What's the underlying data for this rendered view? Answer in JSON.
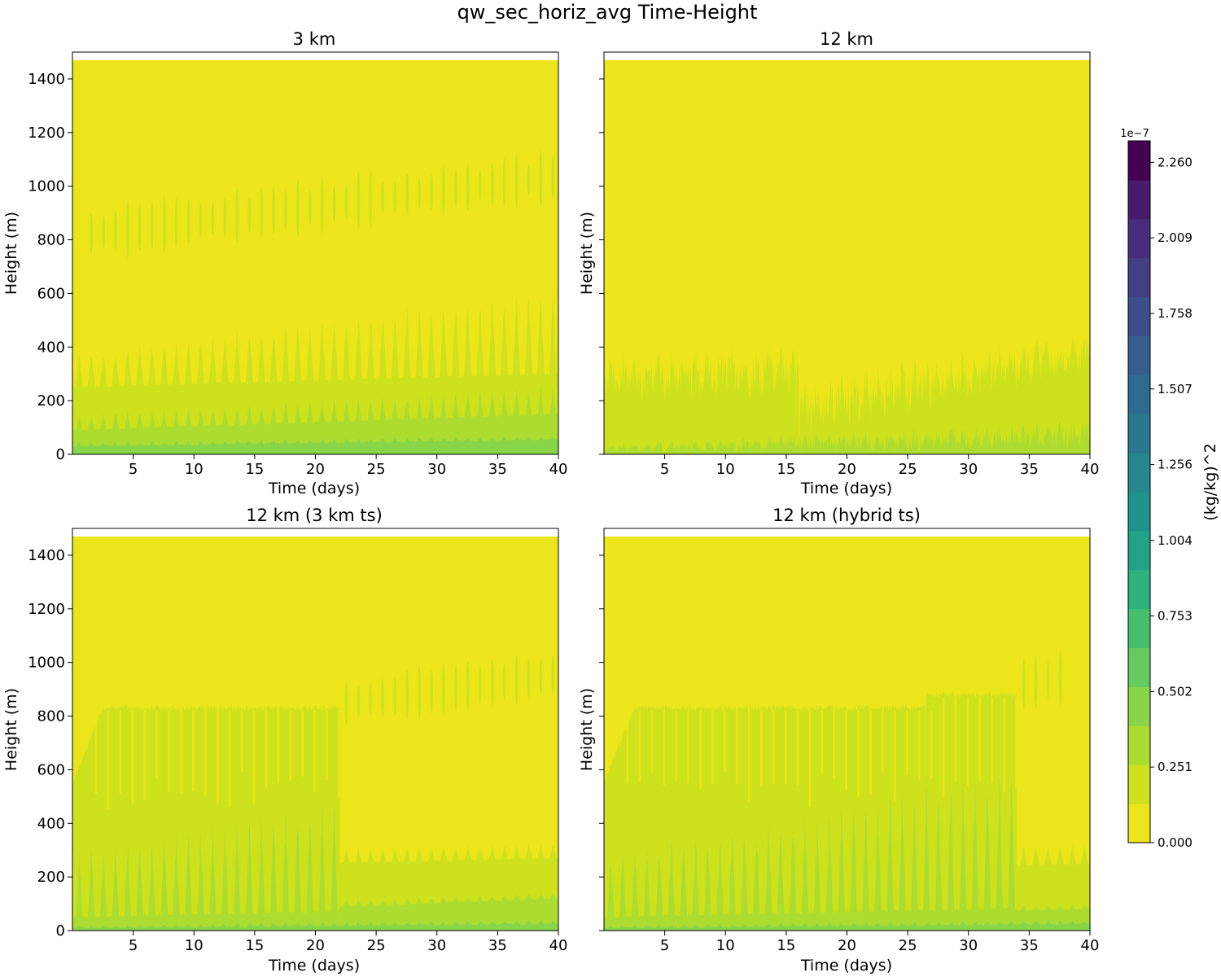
{
  "chart_data": {
    "type": "heatmap",
    "title": "qw_sec_horiz_avg Time-Height",
    "colors": {
      "levels": [
        "#ece51b",
        "#cde11d",
        "#addc30",
        "#89d548",
        "#65cb5e",
        "#46c06f",
        "#2db27d",
        "#20a386",
        "#1f948c",
        "#24868e",
        "#29788e",
        "#2e6b8e",
        "#355e8d",
        "#3c4f8a",
        "#423f85",
        "#472d7b",
        "#481b6d",
        "#440154"
      ],
      "axes_edge": "#000000",
      "background": "#ffffff"
    },
    "colorbar": {
      "label": "(kg/kg)^2",
      "exponent": "1e−7",
      "min": 0,
      "max": 2.26,
      "n_levels": 18,
      "ticks": [
        0.0,
        0.251,
        0.502,
        0.753,
        1.004,
        1.256,
        1.507,
        1.758,
        2.009,
        2.26
      ],
      "tick_labels": [
        "0.000",
        "0.251",
        "0.502",
        "0.753",
        "1.004",
        "1.256",
        "1.507",
        "1.758",
        "2.009",
        "2.260"
      ]
    },
    "panels": [
      {
        "title": "3 km",
        "xlabel": "Time (days)",
        "ylabel": "Height (m)",
        "xlim": [
          0,
          40
        ],
        "ylim": [
          0,
          1500
        ],
        "xticks": [
          5,
          10,
          15,
          20,
          25,
          30,
          35,
          40
        ],
        "yticks": [
          0,
          200,
          400,
          600,
          800,
          1000,
          1200,
          1400
        ],
        "ytick_labels_visible": true,
        "data_top": 1470,
        "regime": "spikes",
        "layers": [
          {
            "level": 1,
            "base_top": [
              250,
              300
            ],
            "spike_top": [
              380,
              650
            ],
            "spike_width": 0.3
          },
          {
            "level": 2,
            "base_top": [
              90,
              150
            ],
            "spike_top": [
              150,
              260
            ],
            "spike_width": 0.25
          },
          {
            "level": 3,
            "base_top": [
              30,
              55
            ],
            "spike_top": [
              45,
              70
            ],
            "spike_width": 0.2
          }
        ],
        "cloud_layer": {
          "level": 1,
          "start": 0.5,
          "end": 40,
          "h_start": 820,
          "h_end": 1040
        }
      },
      {
        "title": "12 km",
        "xlabel": "Time (days)",
        "ylabel": "Height (m)",
        "xlim": [
          0,
          40
        ],
        "ylim": [
          0,
          1500
        ],
        "xticks": [
          5,
          10,
          15,
          20,
          25,
          30,
          35,
          40
        ],
        "yticks": [
          0,
          200,
          400,
          600,
          800,
          1000,
          1200,
          1400
        ],
        "ytick_labels_visible": false,
        "data_top": 1470,
        "regime": "noisy",
        "layers": [
          {
            "level": 1,
            "base_top": [
              200,
              240
            ],
            "spike_top": [
              380,
              550
            ],
            "transition_day": 16,
            "after_base": [
              60,
              300
            ],
            "after_spike": [
              300,
              480
            ]
          },
          {
            "level": 2,
            "base_top": [
              5,
              15
            ],
            "spike_top": [
              40,
              140
            ],
            "spike_width": 0.3
          }
        ],
        "cloud_layer": null
      },
      {
        "title": "12 km (3 km ts)",
        "xlabel": "Time (days)",
        "ylabel": "Height (m)",
        "xlim": [
          0,
          40
        ],
        "ylim": [
          0,
          1500
        ],
        "xticks": [
          5,
          10,
          15,
          20,
          25,
          30,
          35,
          40
        ],
        "yticks": [
          0,
          200,
          400,
          600,
          800,
          1000,
          1200,
          1400
        ],
        "ytick_labels_visible": true,
        "data_top": 1470,
        "regime": "plateau",
        "plateau": {
          "level": 1,
          "top": 830,
          "end_day": 22
        },
        "layers": [
          {
            "level": 2,
            "base_top": [
              50,
              90
            ],
            "spike_top": [
              300,
              700
            ],
            "end_day": 22
          },
          {
            "level": 1,
            "after_base": [
              230,
              270
            ],
            "after_spike": [
              280,
              330
            ],
            "start_day": 22
          },
          {
            "level": 2,
            "after_base": [
              50,
              120
            ],
            "after_spike": [
              80,
              140
            ],
            "start_day": 22
          },
          {
            "level": 3,
            "base_top": [
              10,
              25
            ],
            "spike_top": [
              20,
              40
            ],
            "spike_width": 0.25
          }
        ],
        "cloud_layer": {
          "level": 1,
          "start": 22,
          "end": 40,
          "h_start": 850,
          "h_end": 960
        }
      },
      {
        "title": "12 km (hybrid ts)",
        "xlabel": "Time (days)",
        "ylabel": "Height (m)",
        "xlim": [
          0,
          40
        ],
        "ylim": [
          0,
          1500
        ],
        "xticks": [
          5,
          10,
          15,
          20,
          25,
          30,
          35,
          40
        ],
        "yticks": [
          0,
          200,
          400,
          600,
          800,
          1000,
          1200,
          1400
        ],
        "ytick_labels_visible": false,
        "data_top": 1470,
        "regime": "plateau",
        "plateau": {
          "level": 1,
          "top": 830,
          "end_day": 34,
          "step_day": 26.5,
          "step_top": 880
        },
        "layers": [
          {
            "level": 2,
            "base_top": [
              50,
              90
            ],
            "spike_top": [
              300,
              700
            ],
            "end_day": 34
          },
          {
            "level": 1,
            "after_base": [
              200,
              250
            ],
            "after_spike": [
              280,
              330
            ],
            "start_day": 34
          },
          {
            "level": 2,
            "after_base": [
              40,
              80
            ],
            "after_spike": [
              60,
              100
            ],
            "start_day": 34
          },
          {
            "level": 3,
            "base_top": [
              10,
              25
            ],
            "spike_top": [
              20,
              40
            ],
            "spike_width": 0.25
          }
        ],
        "cloud_layer": {
          "level": 1,
          "start": 34,
          "end": 38,
          "h_start": 920,
          "h_end": 950
        }
      }
    ]
  }
}
